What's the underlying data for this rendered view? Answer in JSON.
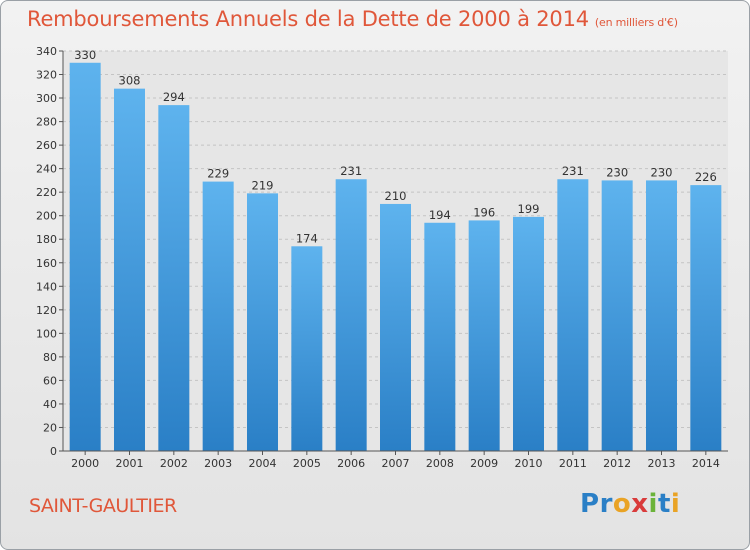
{
  "chart_data": {
    "type": "bar",
    "title": "Remboursements Annuels de la Dette de 2000 à 2014",
    "subtitle": "(en milliers d'€)",
    "xlabel": "",
    "ylabel": "",
    "categories": [
      "2000",
      "2001",
      "2002",
      "2003",
      "2004",
      "2005",
      "2006",
      "2007",
      "2008",
      "2009",
      "2010",
      "2011",
      "2012",
      "2013",
      "2014"
    ],
    "values": [
      330,
      308,
      294,
      229,
      219,
      174,
      231,
      210,
      194,
      196,
      199,
      231,
      230,
      230,
      226
    ],
    "ylim": [
      0,
      340
    ],
    "ytick_step": 20,
    "grid": true,
    "legend": "none",
    "colors": {
      "bar_top": "#5eb3ee",
      "bar_bottom": "#2a7fc6",
      "title": "#e0573a"
    }
  },
  "footer": {
    "commune": "SAINT-GAULTIER"
  },
  "logo": {
    "letters": [
      {
        "char": "P",
        "color": "#2a7fc6"
      },
      {
        "char": "r",
        "color": "#2a7fc6"
      },
      {
        "char": "o",
        "color": "#e9a325"
      },
      {
        "char": "x",
        "color": "#d93b3b"
      },
      {
        "char": "i",
        "color": "#6bb33a"
      },
      {
        "char": "t",
        "color": "#2a7fc6"
      },
      {
        "char": "i",
        "color": "#e9a325"
      }
    ]
  }
}
